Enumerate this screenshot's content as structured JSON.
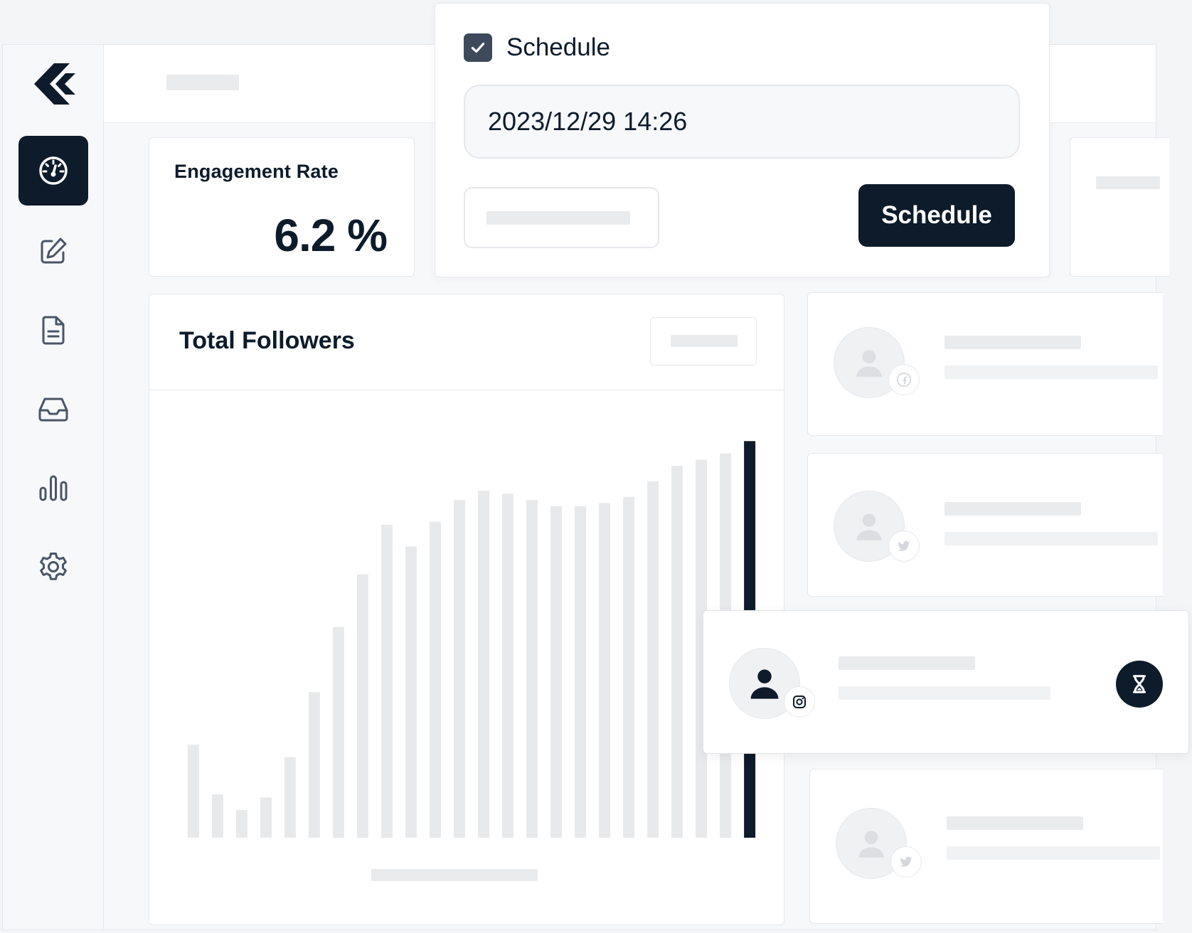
{
  "engagement": {
    "title": "Engagement Rate",
    "value": "6.2 %"
  },
  "followers": {
    "title": "Total Followers"
  },
  "schedule": {
    "checkbox_label": "Schedule",
    "checked": true,
    "datetime_value": "2023/12/29 14:26",
    "submit_label": "Schedule"
  },
  "sidebar": {
    "items": [
      {
        "icon": "dashboard-icon",
        "active": true
      },
      {
        "icon": "edit-icon",
        "active": false
      },
      {
        "icon": "document-icon",
        "active": false
      },
      {
        "icon": "inbox-icon",
        "active": false
      },
      {
        "icon": "analytics-icon",
        "active": false
      },
      {
        "icon": "settings-icon",
        "active": false
      }
    ]
  },
  "posts": [
    {
      "network": "facebook-icon",
      "state": "placeholder"
    },
    {
      "network": "twitter-icon",
      "state": "placeholder"
    },
    {
      "network": "instagram-icon",
      "state": "scheduled"
    },
    {
      "network": "twitter-icon",
      "state": "placeholder"
    }
  ],
  "colors": {
    "accent": "#0d1b2a",
    "placeholder": "#eaebed",
    "bar_placeholder": "#e8e9eb",
    "bar_highlight": "#0d1b2a"
  },
  "chart_data": {
    "type": "bar",
    "values": [
      30,
      14,
      9,
      13,
      26,
      47,
      68,
      85,
      101,
      94,
      102,
      109,
      112,
      111,
      109,
      107,
      107,
      108,
      110,
      115,
      120,
      122,
      124,
      128
    ],
    "highlight_index": 23,
    "ylim": [
      0,
      140
    ]
  }
}
